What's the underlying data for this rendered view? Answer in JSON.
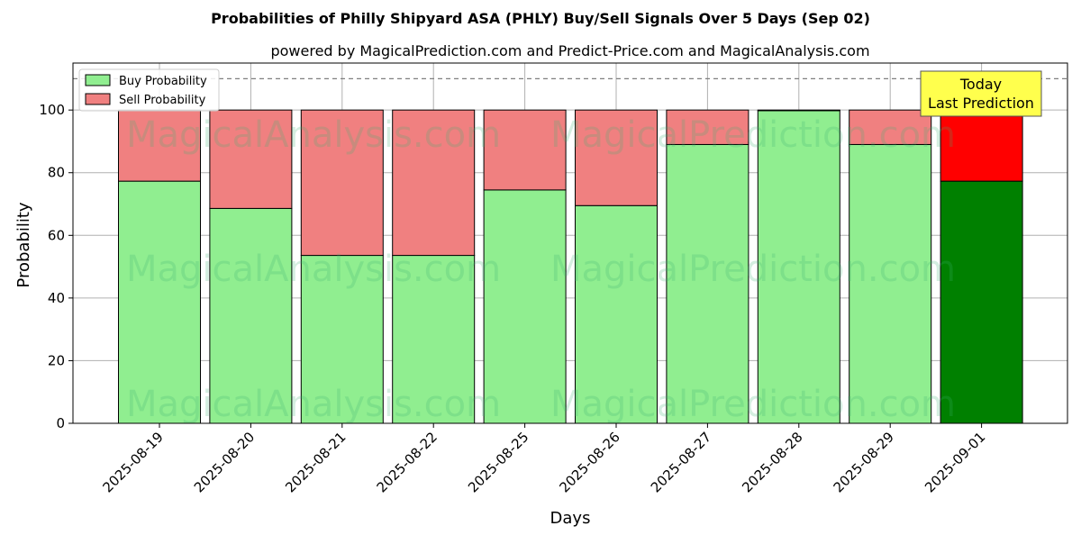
{
  "chart_data": {
    "type": "bar",
    "stacked": true,
    "title": "Probabilities of Philly Shipyard ASA (PHLY) Buy/Sell Signals Over 5 Days (Sep 02)",
    "subtitle": "powered by MagicalPrediction.com and Predict-Price.com and MagicalAnalysis.com",
    "xlabel": "Days",
    "ylabel": "Probability",
    "ylim": [
      0,
      115
    ],
    "yticks": [
      0,
      20,
      40,
      60,
      80,
      100
    ],
    "grid": true,
    "legend_position": "top-left",
    "categories": [
      "2025-08-19",
      "2025-08-20",
      "2025-08-21",
      "2025-08-22",
      "2025-08-25",
      "2025-08-26",
      "2025-08-27",
      "2025-08-28",
      "2025-08-29",
      "2025-09-01"
    ],
    "series": [
      {
        "name": "Buy Probability",
        "values": [
          77.3,
          68.6,
          53.6,
          53.6,
          74.5,
          69.5,
          89.0,
          99.8,
          89.0,
          77.3
        ],
        "color": "#90ee90",
        "last_color": "#008000"
      },
      {
        "name": "Sell Probability",
        "values": [
          22.7,
          31.4,
          46.4,
          46.4,
          25.5,
          30.5,
          11.0,
          0.2,
          11.0,
          22.7
        ],
        "color": "#f08080",
        "last_color": "#ff0000"
      }
    ],
    "reference_line": {
      "y": 110,
      "style": "dashed",
      "color": "#808080"
    },
    "annotation": {
      "lines": [
        "Today",
        "Last Prediction"
      ],
      "background": "#ffff4d"
    },
    "watermarks": [
      "MagicalAnalysis.com",
      "MagicalPrediction.com"
    ]
  }
}
